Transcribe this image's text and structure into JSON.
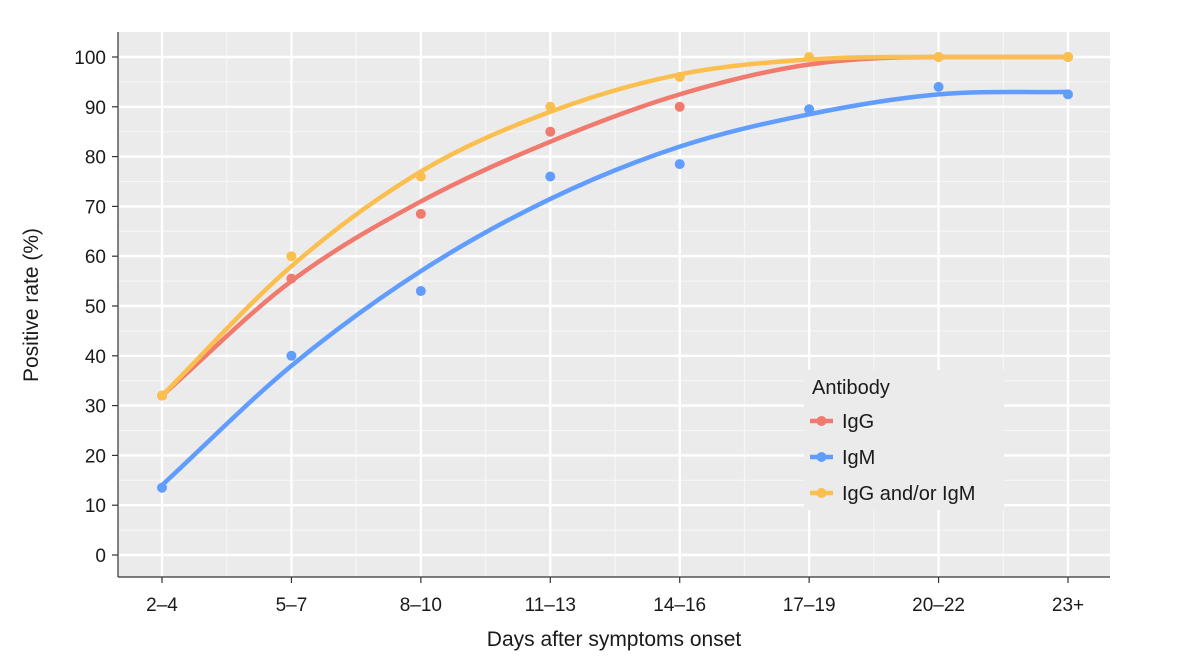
{
  "chart_data": {
    "type": "line",
    "title": "",
    "xlabel": "Days after symptoms onset",
    "ylabel": "Positive rate (%)",
    "categories": [
      "2–4",
      "5–7",
      "8–10",
      "11–13",
      "14–16",
      "17–19",
      "20–22",
      "23+"
    ],
    "ylim": [
      0,
      100
    ],
    "yticks": [
      "0",
      "10",
      "20",
      "30",
      "40",
      "50",
      "60",
      "70",
      "80",
      "90",
      "100"
    ],
    "grid": true,
    "legend_title": "Antibody",
    "legend_position": "bottom-right",
    "series": [
      {
        "name": "IgG",
        "color": "#f07a6e",
        "points": [
          32,
          55.5,
          68.5,
          85,
          90,
          null,
          100,
          100
        ],
        "fit": [
          32,
          55,
          71,
          83,
          92.5,
          98.5,
          100,
          100
        ]
      },
      {
        "name": "IgM",
        "color": "#619cff",
        "points": [
          13.5,
          40,
          53,
          76,
          78.5,
          89.5,
          94,
          92.5
        ],
        "fit": [
          14,
          38,
          57,
          71.5,
          82,
          88.5,
          92.5,
          93
        ]
      },
      {
        "name": "IgG and/or IgM",
        "color": "#fbbf4f",
        "points": [
          32,
          60,
          76,
          90,
          96,
          100,
          100,
          100
        ],
        "fit": [
          32,
          58,
          77,
          89,
          96.5,
          99.5,
          100,
          100
        ]
      }
    ]
  }
}
